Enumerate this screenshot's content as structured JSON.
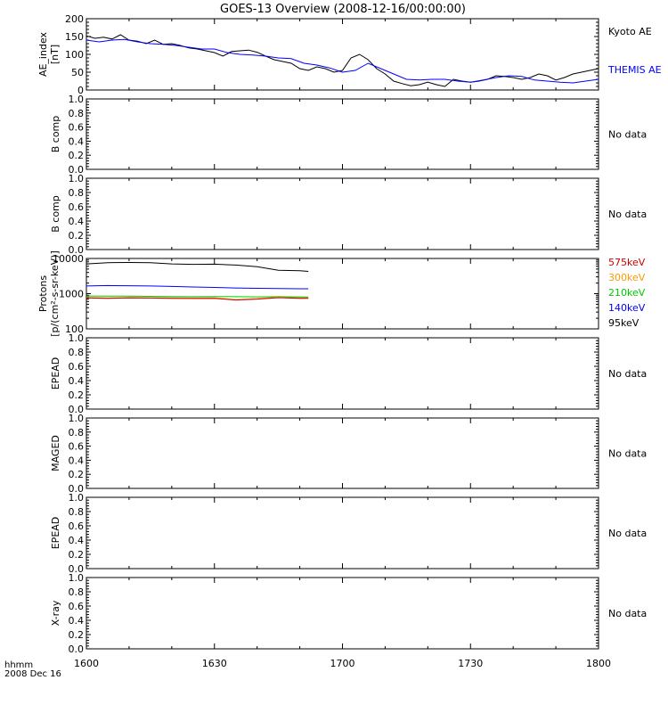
{
  "title": "GOES-13 Overview (2008-12-16/00:00:00)",
  "colors": {
    "axis": "#000000",
    "black": "#000000",
    "blue": "#0000ff",
    "red": "#cc0000",
    "orange": "#ff9900",
    "green": "#00c800"
  },
  "chart_data": [
    {
      "type": "line",
      "ylabel": [
        "AE_index",
        "[nT]"
      ],
      "ylim": [
        0,
        200
      ],
      "yticks": [
        "0",
        "50",
        "100",
        "150",
        "200"
      ],
      "series": [
        {
          "name": "Kyoto AE",
          "color": "#000000",
          "x": [
            0,
            2,
            4,
            6,
            8,
            10,
            12,
            14,
            16,
            18,
            20,
            22,
            24,
            26,
            28,
            30,
            32,
            34,
            36,
            38,
            40,
            42,
            44,
            46,
            48,
            50,
            52,
            54,
            56,
            58,
            60,
            62,
            64,
            66,
            68,
            70,
            72,
            74,
            76,
            78,
            80,
            82,
            84,
            86,
            88,
            90,
            92,
            94,
            96,
            98,
            100,
            102,
            104,
            106,
            108,
            110,
            112,
            114,
            116,
            118,
            120
          ],
          "y": [
            152,
            145,
            148,
            143,
            155,
            140,
            137,
            130,
            140,
            128,
            130,
            125,
            118,
            115,
            110,
            105,
            95,
            108,
            110,
            112,
            106,
            95,
            85,
            80,
            75,
            60,
            55,
            65,
            60,
            50,
            55,
            90,
            100,
            85,
            60,
            45,
            25,
            18,
            12,
            15,
            22,
            15,
            10,
            30,
            25,
            22,
            25,
            30,
            40,
            38,
            35,
            30,
            35,
            45,
            40,
            28,
            35,
            45,
            50,
            55,
            60
          ]
        },
        {
          "name": "THEMIS AE",
          "color": "#0000ff",
          "x": [
            0,
            3,
            6,
            9,
            12,
            15,
            18,
            21,
            24,
            27,
            30,
            33,
            36,
            39,
            42,
            45,
            48,
            51,
            54,
            57,
            60,
            63,
            66,
            69,
            72,
            75,
            78,
            81,
            84,
            87,
            90,
            93,
            96,
            99,
            102,
            105,
            108,
            111,
            114,
            117,
            120
          ],
          "y": [
            140,
            135,
            140,
            142,
            135,
            130,
            128,
            125,
            120,
            115,
            115,
            105,
            100,
            98,
            95,
            90,
            88,
            75,
            70,
            62,
            50,
            55,
            75,
            60,
            45,
            30,
            28,
            30,
            30,
            25,
            22,
            28,
            35,
            40,
            38,
            28,
            25,
            22,
            20,
            25,
            30
          ]
        }
      ],
      "legend": [
        "Kyoto AE",
        "THEMIS AE"
      ]
    },
    {
      "type": "line",
      "ylabel": [
        "B comp"
      ],
      "ylim": [
        0,
        1
      ],
      "yticks": [
        "0.0",
        "0.2",
        "0.4",
        "0.6",
        "0.8",
        "1.0"
      ],
      "note": "No data"
    },
    {
      "type": "line",
      "ylabel": [
        "B comp"
      ],
      "ylim": [
        0,
        1
      ],
      "yticks": [
        "0.0",
        "0.2",
        "0.4",
        "0.6",
        "0.8",
        "1.0"
      ],
      "note": "No data"
    },
    {
      "type": "line",
      "log_y": true,
      "ylabel": [
        "Protons",
        "[p/(cm²-s-sr-keV)]"
      ],
      "ylim": [
        100,
        10000
      ],
      "yticks": [
        "100",
        "1000",
        "10000"
      ],
      "series": [
        {
          "name": "95keV",
          "color": "#000000",
          "x": [
            0,
            5,
            10,
            15,
            20,
            25,
            30,
            35,
            40,
            45,
            50,
            52
          ],
          "y": [
            7000,
            7600,
            7700,
            7600,
            7000,
            6800,
            6900,
            6500,
            5800,
            4600,
            4500,
            4300
          ]
        },
        {
          "name": "140keV",
          "color": "#0000ff",
          "x": [
            0,
            5,
            10,
            15,
            20,
            25,
            30,
            35,
            40,
            45,
            50,
            52
          ],
          "y": [
            1650,
            1700,
            1680,
            1650,
            1600,
            1550,
            1500,
            1450,
            1420,
            1400,
            1380,
            1380
          ]
        },
        {
          "name": "210keV",
          "color": "#00c800",
          "x": [
            0,
            5,
            10,
            15,
            20,
            25,
            30,
            35,
            40,
            45,
            50,
            52
          ],
          "y": [
            860,
            850,
            850,
            840,
            830,
            820,
            830,
            820,
            810,
            820,
            810,
            800
          ]
        },
        {
          "name": "300keV",
          "color": "#ff9900",
          "x": [
            0,
            5,
            10,
            15,
            20,
            25,
            30,
            35,
            40,
            45,
            50,
            52
          ],
          "y": [
            780,
            760,
            780,
            770,
            760,
            750,
            760,
            680,
            720,
            790,
            760,
            760
          ]
        },
        {
          "name": "575keV",
          "color": "#cc0000",
          "x": [
            0,
            5,
            10,
            15,
            20,
            25,
            30,
            35,
            40,
            45,
            50,
            52
          ],
          "y": [
            760,
            740,
            760,
            750,
            740,
            730,
            740,
            660,
            700,
            770,
            740,
            740
          ]
        }
      ],
      "legend": [
        "575keV",
        "300keV",
        "210keV",
        "140keV",
        "95keV"
      ]
    },
    {
      "type": "line",
      "ylabel": [
        "EPEAD"
      ],
      "ylim": [
        0,
        1
      ],
      "yticks": [
        "0.0",
        "0.2",
        "0.4",
        "0.6",
        "0.8",
        "1.0"
      ],
      "note": "No data"
    },
    {
      "type": "line",
      "ylabel": [
        "MAGED"
      ],
      "ylim": [
        0,
        1
      ],
      "yticks": [
        "0.0",
        "0.2",
        "0.4",
        "0.6",
        "0.8",
        "1.0"
      ],
      "note": "No data"
    },
    {
      "type": "line",
      "ylabel": [
        "EPEAD"
      ],
      "ylim": [
        0,
        1
      ],
      "yticks": [
        "0.0",
        "0.2",
        "0.4",
        "0.6",
        "0.8",
        "1.0"
      ],
      "note": "No data"
    },
    {
      "type": "line",
      "ylabel": [
        "X-ray"
      ],
      "ylim": [
        0,
        1
      ],
      "yticks": [
        "0.0",
        "0.2",
        "0.4",
        "0.6",
        "0.8",
        "1.0"
      ],
      "note": "No data"
    }
  ],
  "x_axis": {
    "range_minutes": [
      0,
      120
    ],
    "ticks": [
      {
        "minutes": 0,
        "label": "1600"
      },
      {
        "minutes": 30,
        "label": "1630"
      },
      {
        "minutes": 60,
        "label": "1700"
      },
      {
        "minutes": 90,
        "label": "1730"
      },
      {
        "minutes": 120,
        "label": "1800"
      }
    ],
    "label_line1": "hhmm",
    "label_line2": "2008 Dec 16"
  }
}
